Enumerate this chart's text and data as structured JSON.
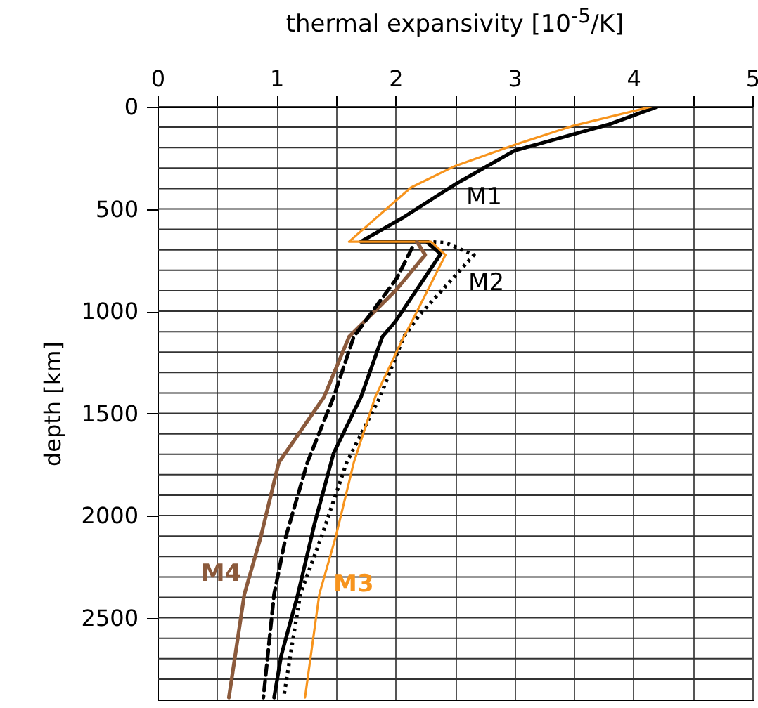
{
  "chart_data": {
    "type": "line",
    "xlabel": "thermal expansivity [10$^{-5}$/K]",
    "ylabel": "depth [km]",
    "xlim": [
      0,
      5
    ],
    "ylim": [
      2900,
      0
    ],
    "xticks": [
      0,
      {
        "value": 0.5,
        "label": null
      },
      1,
      {
        "value": 1.5,
        "label": null
      },
      2,
      {
        "value": 2.5,
        "label": null
      },
      3,
      {
        "value": 3.5,
        "label": null
      },
      4,
      {
        "value": 4.5,
        "label": null
      },
      5
    ],
    "yticks": [
      0,
      {
        "value": 100,
        "label": null
      },
      {
        "value": 200,
        "label": null
      },
      {
        "value": 300,
        "label": null
      },
      {
        "value": 400,
        "label": null
      },
      500,
      {
        "value": 600,
        "label": null
      },
      {
        "value": 700,
        "label": null
      },
      {
        "value": 800,
        "label": null
      },
      {
        "value": 900,
        "label": null
      },
      1000,
      {
        "value": 1100,
        "label": null
      },
      {
        "value": 1200,
        "label": null
      },
      {
        "value": 1300,
        "label": null
      },
      {
        "value": 1400,
        "label": null
      },
      1500,
      {
        "value": 1600,
        "label": null
      },
      {
        "value": 1700,
        "label": null
      },
      {
        "value": 1800,
        "label": null
      },
      {
        "value": 1900,
        "label": null
      },
      2000,
      {
        "value": 2100,
        "label": null
      },
      {
        "value": 2200,
        "label": null
      },
      {
        "value": 2300,
        "label": null
      },
      {
        "value": 2400,
        "label": null
      },
      2500,
      {
        "value": 2600,
        "label": null
      },
      {
        "value": 2700,
        "label": null
      },
      {
        "value": 2800,
        "label": null
      }
    ],
    "grid": true,
    "series": [
      {
        "color": "#000000",
        "line_style": "solid",
        "x": [
          4.2,
          3.8,
          3.0,
          2.5,
          2.07,
          1.71,
          2.26,
          2.38,
          2.0,
          1.89,
          1.71,
          1.48,
          1.32,
          1.18,
          1.04,
          0.98
        ],
        "values": [
          0,
          85,
          215,
          380,
          540,
          660,
          660,
          720,
          1050,
          1125,
          1420,
          1695,
          2040,
          2385,
          2685,
          2890
        ]
      },
      {
        "color": "#000000",
        "line_style": "dotted",
        "x": [
          2.26,
          2.42,
          2.66,
          2.45,
          2.2,
          2.07,
          1.87,
          1.59,
          1.38,
          1.2,
          1.06
        ],
        "values": [
          660,
          665,
          725,
          860,
          1020,
          1125,
          1420,
          1740,
          2100,
          2385,
          2890
        ]
      },
      {
        "color": "#f7941d",
        "line_style": "solid",
        "x": [
          4.15,
          3.48,
          3.01,
          2.5,
          2.13,
          1.61,
          2.3,
          2.42,
          2.13,
          2.07,
          1.83,
          1.65,
          1.5,
          1.36,
          1.24
        ],
        "values": [
          0,
          95,
          185,
          290,
          395,
          660,
          660,
          725,
          1060,
          1125,
          1420,
          1740,
          2100,
          2385,
          2890
        ]
      },
      {
        "color": "#8b5a3c",
        "line_style": "solid",
        "x": [
          2.18,
          2.25,
          2.0,
          1.61,
          1.4,
          1.02,
          0.87,
          0.73,
          0.6
        ],
        "values": [
          660,
          725,
          900,
          1125,
          1420,
          1740,
          2100,
          2385,
          2890
        ]
      },
      {
        "color": "#000000",
        "line_style": "dashed",
        "x": [
          2.14,
          2.01,
          1.65,
          1.48,
          1.26,
          1.08,
          0.98,
          0.89
        ],
        "values": [
          690,
          840,
          1125,
          1420,
          1740,
          2100,
          2385,
          2890
        ]
      }
    ],
    "annotations": [
      "M1",
      "M2",
      "M3",
      "M4"
    ]
  }
}
